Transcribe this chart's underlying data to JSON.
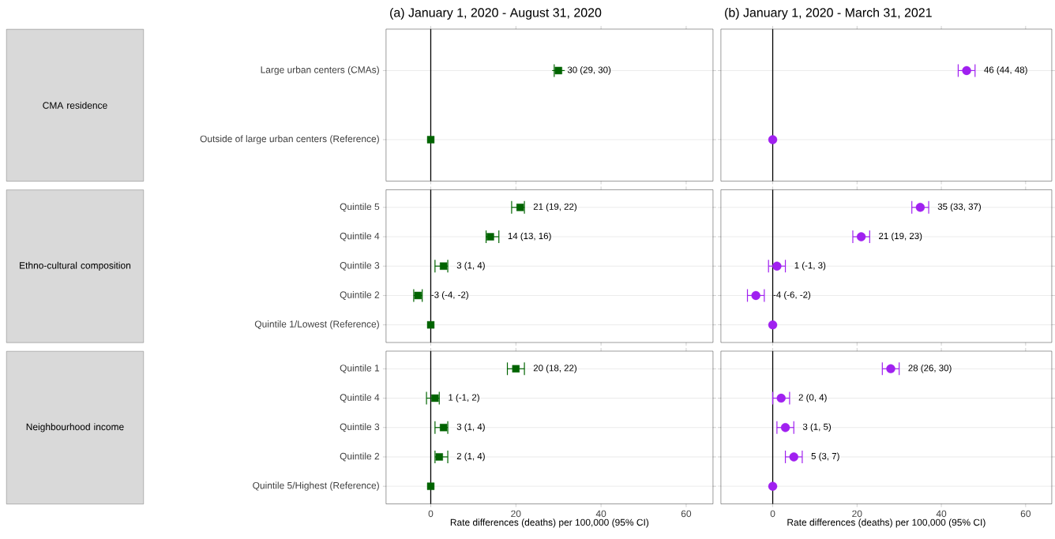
{
  "chart_data": [
    {
      "type": "scatter",
      "orientation": "horizontal",
      "title": "(a) January 1, 2020 - August 31, 2020",
      "ylabel": "CMA residence",
      "categories": [
        "Large urban centers (CMAs)",
        "Outside of large urban centers (Reference)"
      ],
      "values": [
        30,
        0
      ],
      "errors": [
        [
          29,
          30
        ],
        null
      ],
      "value_labels": [
        "30 (29, 30)",
        null
      ],
      "color": "#006400",
      "marker": "square",
      "xlim": [
        -10.5,
        66.3
      ],
      "xticks": [
        0,
        20,
        40,
        60
      ],
      "grid": "y",
      "ref_lines": [
        {
          "axis": "x",
          "value": 0
        }
      ],
      "tick_labels": "y"
    },
    {
      "type": "scatter",
      "orientation": "horizontal",
      "title": "(b) January 1, 2020 - March 31, 2021",
      "categories": [
        null,
        null
      ],
      "values": [
        46,
        0
      ],
      "errors": [
        [
          44,
          48
        ],
        null
      ],
      "value_labels": [
        "46 (44, 48)",
        null
      ],
      "color": "#a020f0",
      "marker": "circle",
      "xlim": [
        -12.3,
        66.2
      ],
      "xticks": [
        0,
        20,
        40,
        60
      ],
      "grid": "y",
      "ref_lines": [
        {
          "axis": "x",
          "value": 0
        }
      ],
      "tick_labels": false
    },
    {
      "type": "scatter",
      "orientation": "horizontal",
      "ylabel": "Ethno-cultural composition",
      "categories": [
        "Quintile 5",
        "Quintile 4",
        "Quintile 3",
        "Quintile 2",
        "Quintile 1/Lowest (Reference)"
      ],
      "values": [
        21,
        14,
        3,
        -3,
        0
      ],
      "errors": [
        [
          19,
          22
        ],
        [
          13,
          16
        ],
        [
          1,
          4
        ],
        [
          -4,
          -2
        ],
        null
      ],
      "value_labels": [
        "21 (19, 22)",
        "14 (13, 16)",
        "3 (1, 4)",
        "-3 (-4, -2)",
        null
      ],
      "color": "#006400",
      "marker": "square",
      "xlim": [
        -10.5,
        66.3
      ],
      "xticks": [
        0,
        20,
        40,
        60
      ],
      "grid": "y",
      "ref_lines": [
        {
          "axis": "x",
          "value": 0
        }
      ],
      "tick_labels": "y"
    },
    {
      "type": "scatter",
      "orientation": "horizontal",
      "categories": [
        null,
        null,
        null,
        null,
        null
      ],
      "values": [
        35,
        21,
        1,
        -4,
        0
      ],
      "errors": [
        [
          33,
          37
        ],
        [
          19,
          23
        ],
        [
          -1,
          3
        ],
        [
          -6,
          -2
        ],
        null
      ],
      "value_labels": [
        "35 (33, 37)",
        "21 (19, 23)",
        "1 (-1, 3)",
        "-4 (-6, -2)",
        null
      ],
      "color": "#a020f0",
      "marker": "circle",
      "xlim": [
        -12.3,
        66.2
      ],
      "xticks": [
        0,
        20,
        40,
        60
      ],
      "grid": "y",
      "ref_lines": [
        {
          "axis": "x",
          "value": 0
        }
      ],
      "tick_labels": false
    },
    {
      "type": "scatter",
      "orientation": "horizontal",
      "ylabel": "Neighbourhood income",
      "xlabel": "Rate differences (deaths) per 100,000 (95% CI)",
      "categories": [
        "Quintile 1",
        "Quintile 4",
        "Quintile 3",
        "Quintile 2",
        "Quintile 5/Highest (Reference)"
      ],
      "values": [
        20,
        1,
        3,
        2,
        0
      ],
      "errors": [
        [
          18,
          22
        ],
        [
          -1,
          2
        ],
        [
          1,
          4
        ],
        [
          1,
          4
        ],
        null
      ],
      "value_labels": [
        "20 (18, 22)",
        "1 (-1, 2)",
        "3 (1, 4)",
        "2 (1, 4)",
        null
      ],
      "color": "#006400",
      "marker": "square",
      "xlim": [
        -10.5,
        66.3
      ],
      "xticks": [
        0,
        20,
        40,
        60
      ],
      "grid": "y",
      "ref_lines": [
        {
          "axis": "x",
          "value": 0
        }
      ]
    },
    {
      "type": "scatter",
      "orientation": "horizontal",
      "xlabel": "Rate differences (deaths) per 100,000 (95% CI)",
      "categories": [
        null,
        null,
        null,
        null,
        null
      ],
      "values": [
        28,
        2,
        3,
        5,
        0
      ],
      "errors": [
        [
          26,
          30
        ],
        [
          0,
          4
        ],
        [
          1,
          5
        ],
        [
          3,
          7
        ],
        null
      ],
      "value_labels": [
        "28 (26, 30)",
        "2 (0, 4)",
        "3 (1, 5)",
        "5 (3, 7)",
        null
      ],
      "color": "#a020f0",
      "marker": "circle",
      "xlim": [
        -12.3,
        66.2
      ],
      "xticks": [
        0,
        20,
        40,
        60
      ],
      "grid": "y",
      "ref_lines": [
        {
          "axis": "x",
          "value": 0
        }
      ],
      "tick_labels": "x"
    }
  ]
}
